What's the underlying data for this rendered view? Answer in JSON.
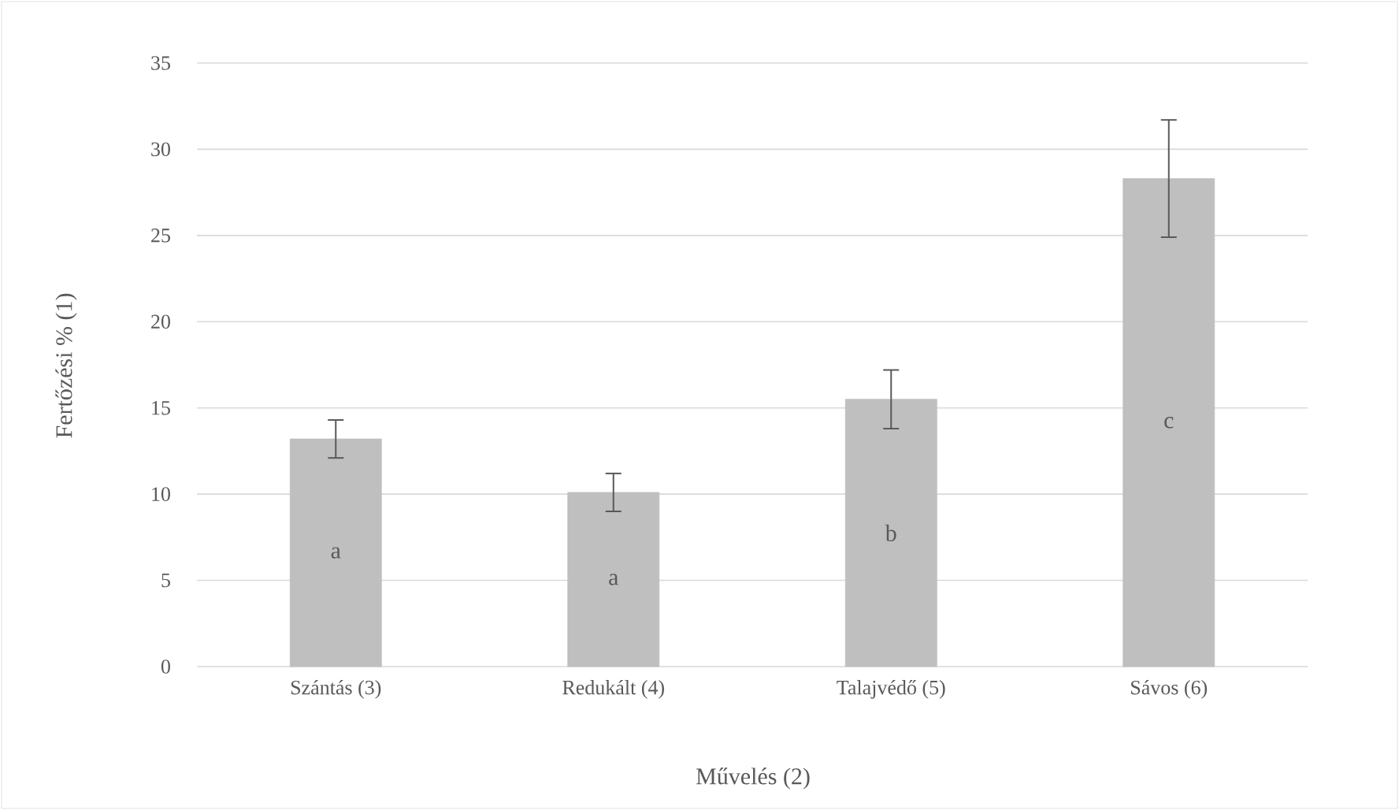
{
  "chart_data": {
    "type": "bar",
    "xlabel": "Művelés (2)",
    "ylabel": "Fertőzési % (1)",
    "categories": [
      "Szántás (3)",
      "Redukált (4)",
      "Talajvédő (5)",
      "Sávos (6)"
    ],
    "values": [
      13.2,
      10.1,
      15.5,
      28.3
    ],
    "errors": [
      1.1,
      1.1,
      1.7,
      3.4
    ],
    "color": "#bfbfbf",
    "ylim": [
      0,
      35
    ],
    "yticks": [
      0,
      5,
      10,
      15,
      20,
      25,
      30,
      35
    ],
    "grid": "y",
    "annotations": [
      "a",
      "a",
      "b",
      "c"
    ]
  }
}
